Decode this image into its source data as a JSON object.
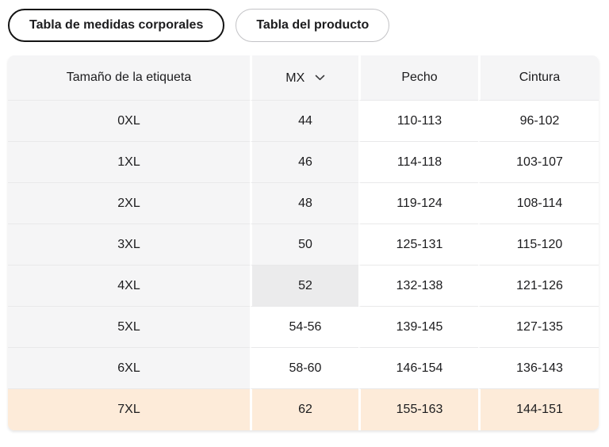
{
  "tabs": [
    {
      "label": "Tabla de medidas corporales",
      "active": true
    },
    {
      "label": "Tabla del producto",
      "active": false
    }
  ],
  "table": {
    "headers": [
      "Tamaño de la etiqueta",
      "MX",
      "Pecho",
      "Cintura"
    ],
    "mx_header_icon": "chevron-down-icon",
    "rows": [
      {
        "size": "0XL",
        "mx": "44",
        "pecho": "110-113",
        "cintura": "96-102",
        "mx_shaded": true
      },
      {
        "size": "1XL",
        "mx": "46",
        "pecho": "114-118",
        "cintura": "103-107",
        "mx_shaded": true
      },
      {
        "size": "2XL",
        "mx": "48",
        "pecho": "119-124",
        "cintura": "108-114",
        "mx_shaded": true
      },
      {
        "size": "3XL",
        "mx": "50",
        "pecho": "125-131",
        "cintura": "115-120",
        "mx_shaded": true
      },
      {
        "size": "4XL",
        "mx": "52",
        "pecho": "132-138",
        "cintura": "121-126",
        "mx_shaded": true,
        "mx_selected": true
      },
      {
        "size": "5XL",
        "mx": "54-56",
        "pecho": "139-145",
        "cintura": "127-135",
        "mx_shaded": false
      },
      {
        "size": "6XL",
        "mx": "58-60",
        "pecho": "146-154",
        "cintura": "136-143",
        "mx_shaded": false
      },
      {
        "size": "7XL",
        "mx": "62",
        "pecho": "155-163",
        "cintura": "144-151",
        "mx_shaded": false,
        "row_highlight": true
      }
    ],
    "colors": {
      "shaded_cell": "#f5f5f6",
      "selected_mx_cell": "#ebebec",
      "highlight_row": "#fdebd9",
      "row_divider": "#e9e9ea",
      "active_tab_border": "#141414",
      "inactive_tab_border": "#c3c3c6"
    }
  }
}
